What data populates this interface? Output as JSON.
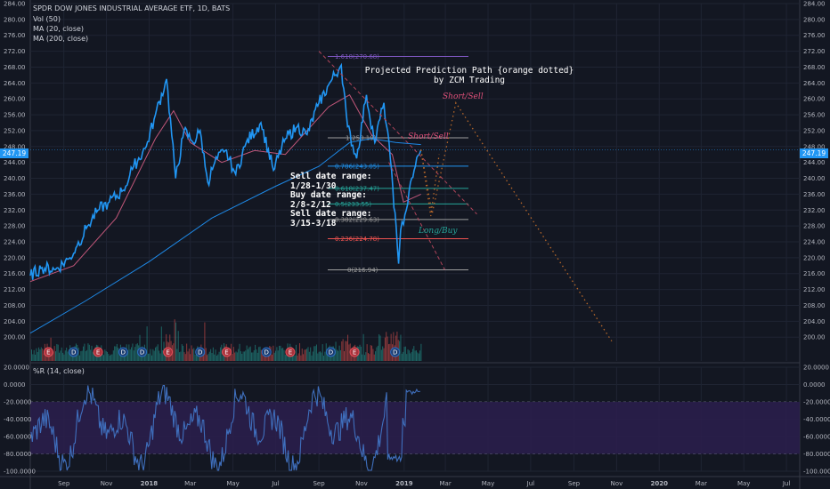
{
  "header": {
    "symbol": "SPDR DOW JONES INDUSTRIAL AVERAGE ETF, 1D, BATS",
    "vol": "Vol (50)",
    "ma20": "MA (20, close)",
    "ma200": "MA (200, close)"
  },
  "wr_header": "%R (14, close)",
  "annotations": {
    "projection": [
      "Projected Prediction Path {orange dotted}",
      "by ZCM Trading"
    ],
    "notes": [
      "Sell date range:",
      "1/28-1/30",
      "Buy date range:",
      "2/8-2/12",
      "Sell date range:",
      "3/15-3/18"
    ],
    "short_sell_1": "Short/Sell",
    "short_sell_2": "Short/Sell",
    "long_buy": "Long/Buy"
  },
  "price_tag": "247.19",
  "colors": {
    "background": "#131722",
    "price_line": "#2196f3",
    "ma20": "#c2577a",
    "ma200": "#1e88e5",
    "projection": "#b8682a",
    "wr_line": "#3f6fbd",
    "wr_band": "#2b1f4d",
    "vol_up": "#26a69a",
    "vol_down": "#ef5350"
  },
  "chart_data": {
    "type": "line",
    "price_axis": {
      "range": [
        194,
        284
      ],
      "ticks": [
        "284.00",
        "280.00",
        "276.00",
        "272.00",
        "268.00",
        "264.00",
        "260.00",
        "256.00",
        "252.00",
        "248.00",
        "244.00",
        "240.00",
        "236.00",
        "232.00",
        "228.00",
        "224.00",
        "220.00",
        "216.00",
        "212.00",
        "208.00",
        "204.00",
        "200.00"
      ]
    },
    "wr_axis": {
      "range": [
        -100,
        20
      ],
      "ticks": [
        "20.0000",
        "0.0000",
        "-20.0000",
        "-40.0000",
        "-60.0000",
        "-80.0000",
        "-100.0000"
      ]
    },
    "time_axis": [
      "Sep",
      "Nov",
      "2018",
      "Mar",
      "May",
      "Jul",
      "Sep",
      "Nov",
      "2019",
      "Mar",
      "May",
      "Jul",
      "Sep",
      "Nov",
      "2020",
      "Mar",
      "May",
      "Jul"
    ],
    "bold_ticks": [
      "2018",
      "2019",
      "2020"
    ],
    "price_series": [
      {
        "x": "2017-07-15",
        "y": 215.5
      },
      {
        "x": "2017-08-01",
        "y": 217.5
      },
      {
        "x": "2017-08-20",
        "y": 217
      },
      {
        "x": "2017-09-10",
        "y": 220
      },
      {
        "x": "2017-09-20",
        "y": 223
      },
      {
        "x": "2017-10-05",
        "y": 228
      },
      {
        "x": "2017-10-20",
        "y": 232
      },
      {
        "x": "2017-11-05",
        "y": 234
      },
      {
        "x": "2017-11-25",
        "y": 237
      },
      {
        "x": "2017-12-10",
        "y": 243
      },
      {
        "x": "2017-12-28",
        "y": 248
      },
      {
        "x": "2018-01-10",
        "y": 256
      },
      {
        "x": "2018-01-26",
        "y": 265
      },
      {
        "x": "2018-02-08",
        "y": 240
      },
      {
        "x": "2018-02-20",
        "y": 252
      },
      {
        "x": "2018-03-05",
        "y": 249
      },
      {
        "x": "2018-03-15",
        "y": 252
      },
      {
        "x": "2018-03-26",
        "y": 239
      },
      {
        "x": "2018-04-05",
        "y": 244
      },
      {
        "x": "2018-04-20",
        "y": 247
      },
      {
        "x": "2018-05-05",
        "y": 241
      },
      {
        "x": "2018-05-20",
        "y": 249
      },
      {
        "x": "2018-06-10",
        "y": 254
      },
      {
        "x": "2018-06-28",
        "y": 242
      },
      {
        "x": "2018-07-15",
        "y": 250
      },
      {
        "x": "2018-08-01",
        "y": 253
      },
      {
        "x": "2018-08-15",
        "y": 251
      },
      {
        "x": "2018-09-01",
        "y": 259
      },
      {
        "x": "2018-09-20",
        "y": 265
      },
      {
        "x": "2018-10-03",
        "y": 268.5
      },
      {
        "x": "2018-10-12",
        "y": 253
      },
      {
        "x": "2018-10-25",
        "y": 245
      },
      {
        "x": "2018-11-08",
        "y": 261
      },
      {
        "x": "2018-11-20",
        "y": 249
      },
      {
        "x": "2018-12-03",
        "y": 259
      },
      {
        "x": "2018-12-14",
        "y": 242
      },
      {
        "x": "2018-12-24",
        "y": 218.5
      },
      {
        "x": "2018-12-27",
        "y": 227
      },
      {
        "x": "2019-01-04",
        "y": 232
      },
      {
        "x": "2019-01-10",
        "y": 239
      },
      {
        "x": "2019-01-17",
        "y": 243
      },
      {
        "x": "2019-01-25",
        "y": 247.2
      }
    ],
    "ma200_series": [
      {
        "x": "2017-07-15",
        "y": 201
      },
      {
        "x": "2017-10-01",
        "y": 209
      },
      {
        "x": "2018-01-01",
        "y": 219
      },
      {
        "x": "2018-04-01",
        "y": 230
      },
      {
        "x": "2018-07-01",
        "y": 238
      },
      {
        "x": "2018-09-01",
        "y": 243
      },
      {
        "x": "2018-10-15",
        "y": 249
      },
      {
        "x": "2018-11-15",
        "y": 250
      },
      {
        "x": "2018-12-20",
        "y": 249
      },
      {
        "x": "2019-01-25",
        "y": 248.5
      }
    ],
    "ma20_series": [
      {
        "x": "2017-07-15",
        "y": 214
      },
      {
        "x": "2017-09-15",
        "y": 218
      },
      {
        "x": "2017-11-15",
        "y": 230
      },
      {
        "x": "2018-01-10",
        "y": 250
      },
      {
        "x": "2018-02-05",
        "y": 257
      },
      {
        "x": "2018-03-01",
        "y": 249
      },
      {
        "x": "2018-04-15",
        "y": 244
      },
      {
        "x": "2018-06-01",
        "y": 247
      },
      {
        "x": "2018-07-15",
        "y": 246
      },
      {
        "x": "2018-09-15",
        "y": 258
      },
      {
        "x": "2018-10-15",
        "y": 261
      },
      {
        "x": "2018-11-15",
        "y": 251
      },
      {
        "x": "2018-12-15",
        "y": 246
      },
      {
        "x": "2018-12-31",
        "y": 234
      },
      {
        "x": "2019-01-25",
        "y": 236
      }
    ],
    "projection_path": [
      {
        "x": "2019-01-25",
        "y": 247.2
      },
      {
        "x": "2019-02-10",
        "y": 231
      },
      {
        "x": "2019-03-16",
        "y": 259
      },
      {
        "x": "2019-10-25",
        "y": 199
      }
    ],
    "projection_short": [
      {
        "x": "2019-01-25",
        "y": 247.2
      },
      {
        "x": "2019-02-08",
        "y": 230.5
      },
      {
        "x": "2019-02-20",
        "y": 246
      }
    ],
    "trendlines": [
      {
        "from": {
          "x": "2018-09-01",
          "y": 272
        },
        "to": {
          "x": "2019-04-15",
          "y": 231
        }
      },
      {
        "from": {
          "x": "2018-12-10",
          "y": 244
        },
        "to": {
          "x": "2019-02-28",
          "y": 217
        }
      }
    ],
    "fibonacci": [
      {
        "level": "1.618(270.68)",
        "y": 270.68,
        "color": "#7e57c2"
      },
      {
        "level": "1(250.19)",
        "y": 250.19,
        "color": "#9e9e9e"
      },
      {
        "level": "0.786(243.05)",
        "y": 243.05,
        "color": "#2196f3"
      },
      {
        "level": "0.618(237.47)",
        "y": 237.47,
        "color": "#26a69a"
      },
      {
        "level": "0.5(233.55)",
        "y": 233.55,
        "color": "#26a69a"
      },
      {
        "level": "0.382(229.63)",
        "y": 229.63,
        "color": "#9e9e9e"
      },
      {
        "level": "0.236(224.78)",
        "y": 224.78,
        "color": "#ef5350"
      },
      {
        "level": "0(216.94)",
        "y": 216.94,
        "color": "#9e9e9e"
      }
    ],
    "event_markers": [
      {
        "x": "2017-08-10",
        "label": "E"
      },
      {
        "x": "2017-09-15",
        "label": "D"
      },
      {
        "x": "2017-10-20",
        "label": "E"
      },
      {
        "x": "2017-11-25",
        "label": "D"
      },
      {
        "x": "2017-12-22",
        "label": "D"
      },
      {
        "x": "2018-01-28",
        "label": "E"
      },
      {
        "x": "2018-03-15",
        "label": "D"
      },
      {
        "x": "2018-04-22",
        "label": "E"
      },
      {
        "x": "2018-06-18",
        "label": "D"
      },
      {
        "x": "2018-07-22",
        "label": "E"
      },
      {
        "x": "2018-09-18",
        "label": "D"
      },
      {
        "x": "2018-10-22",
        "label": "E"
      },
      {
        "x": "2018-12-19",
        "label": "D"
      }
    ],
    "wr_bands": [
      -20,
      -80
    ]
  }
}
